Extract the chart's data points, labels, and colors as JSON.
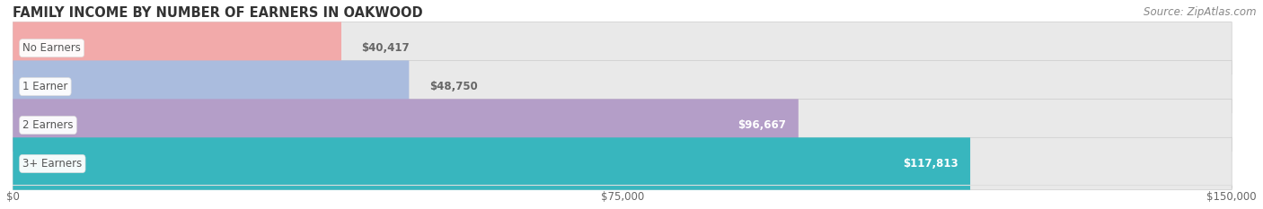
{
  "title": "FAMILY INCOME BY NUMBER OF EARNERS IN OAKWOOD",
  "source": "Source: ZipAtlas.com",
  "categories": [
    "No Earners",
    "1 Earner",
    "2 Earners",
    "3+ Earners"
  ],
  "values": [
    40417,
    48750,
    96667,
    117813
  ],
  "labels": [
    "$40,417",
    "$48,750",
    "$96,667",
    "$117,813"
  ],
  "bar_colors": [
    "#f2aaaa",
    "#aabcde",
    "#b49ec8",
    "#38b6be"
  ],
  "label_colors": [
    "#666666",
    "#666666",
    "#ffffff",
    "#ffffff"
  ],
  "bar_bg_color": "#e9e9e9",
  "bar_border_color": "#cccccc",
  "xlim": [
    0,
    150000
  ],
  "xticks": [
    0,
    75000,
    150000
  ],
  "xtick_labels": [
    "$0",
    "$75,000",
    "$150,000"
  ],
  "fig_bg_color": "#ffffff",
  "bar_height": 0.68,
  "title_fontsize": 10.5,
  "source_fontsize": 8.5,
  "label_fontsize": 8.5,
  "tick_fontsize": 8.5,
  "category_fontsize": 8.5,
  "title_color": "#333333",
  "source_color": "#888888",
  "category_label_color": "#555555"
}
